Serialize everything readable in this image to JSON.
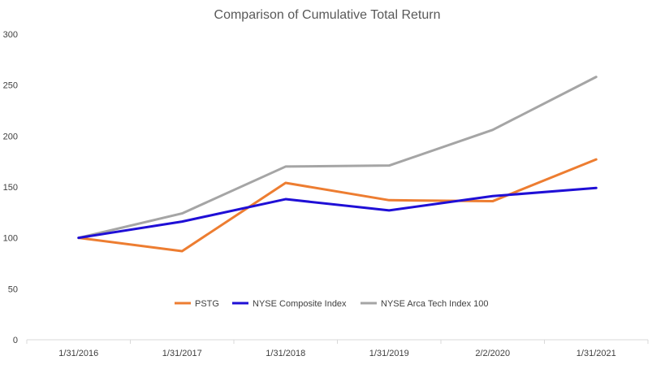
{
  "chart_data": {
    "type": "line",
    "title": "Comparison of Cumulative Total Return",
    "xlabel": "",
    "ylabel": "",
    "categories": [
      "1/31/2016",
      "1/31/2017",
      "1/31/2018",
      "1/31/2019",
      "2/2/2020",
      "1/31/2021"
    ],
    "ylim": [
      0,
      300
    ],
    "yticks": [
      0,
      50,
      100,
      150,
      200,
      250,
      300
    ],
    "grid": false,
    "legend_position": "bottom",
    "series": [
      {
        "name": "PSTG",
        "color": "#ED7D31",
        "values": [
          100,
          87,
          154,
          137,
          136,
          177
        ]
      },
      {
        "name": "NYSE Composite Index",
        "color": "#1F0FD6",
        "values": [
          100,
          116,
          138,
          127,
          141,
          149
        ]
      },
      {
        "name": "NYSE Arca Tech Index 100",
        "color": "#A5A5A5",
        "values": [
          100,
          124,
          170,
          171,
          206,
          258
        ]
      }
    ]
  }
}
